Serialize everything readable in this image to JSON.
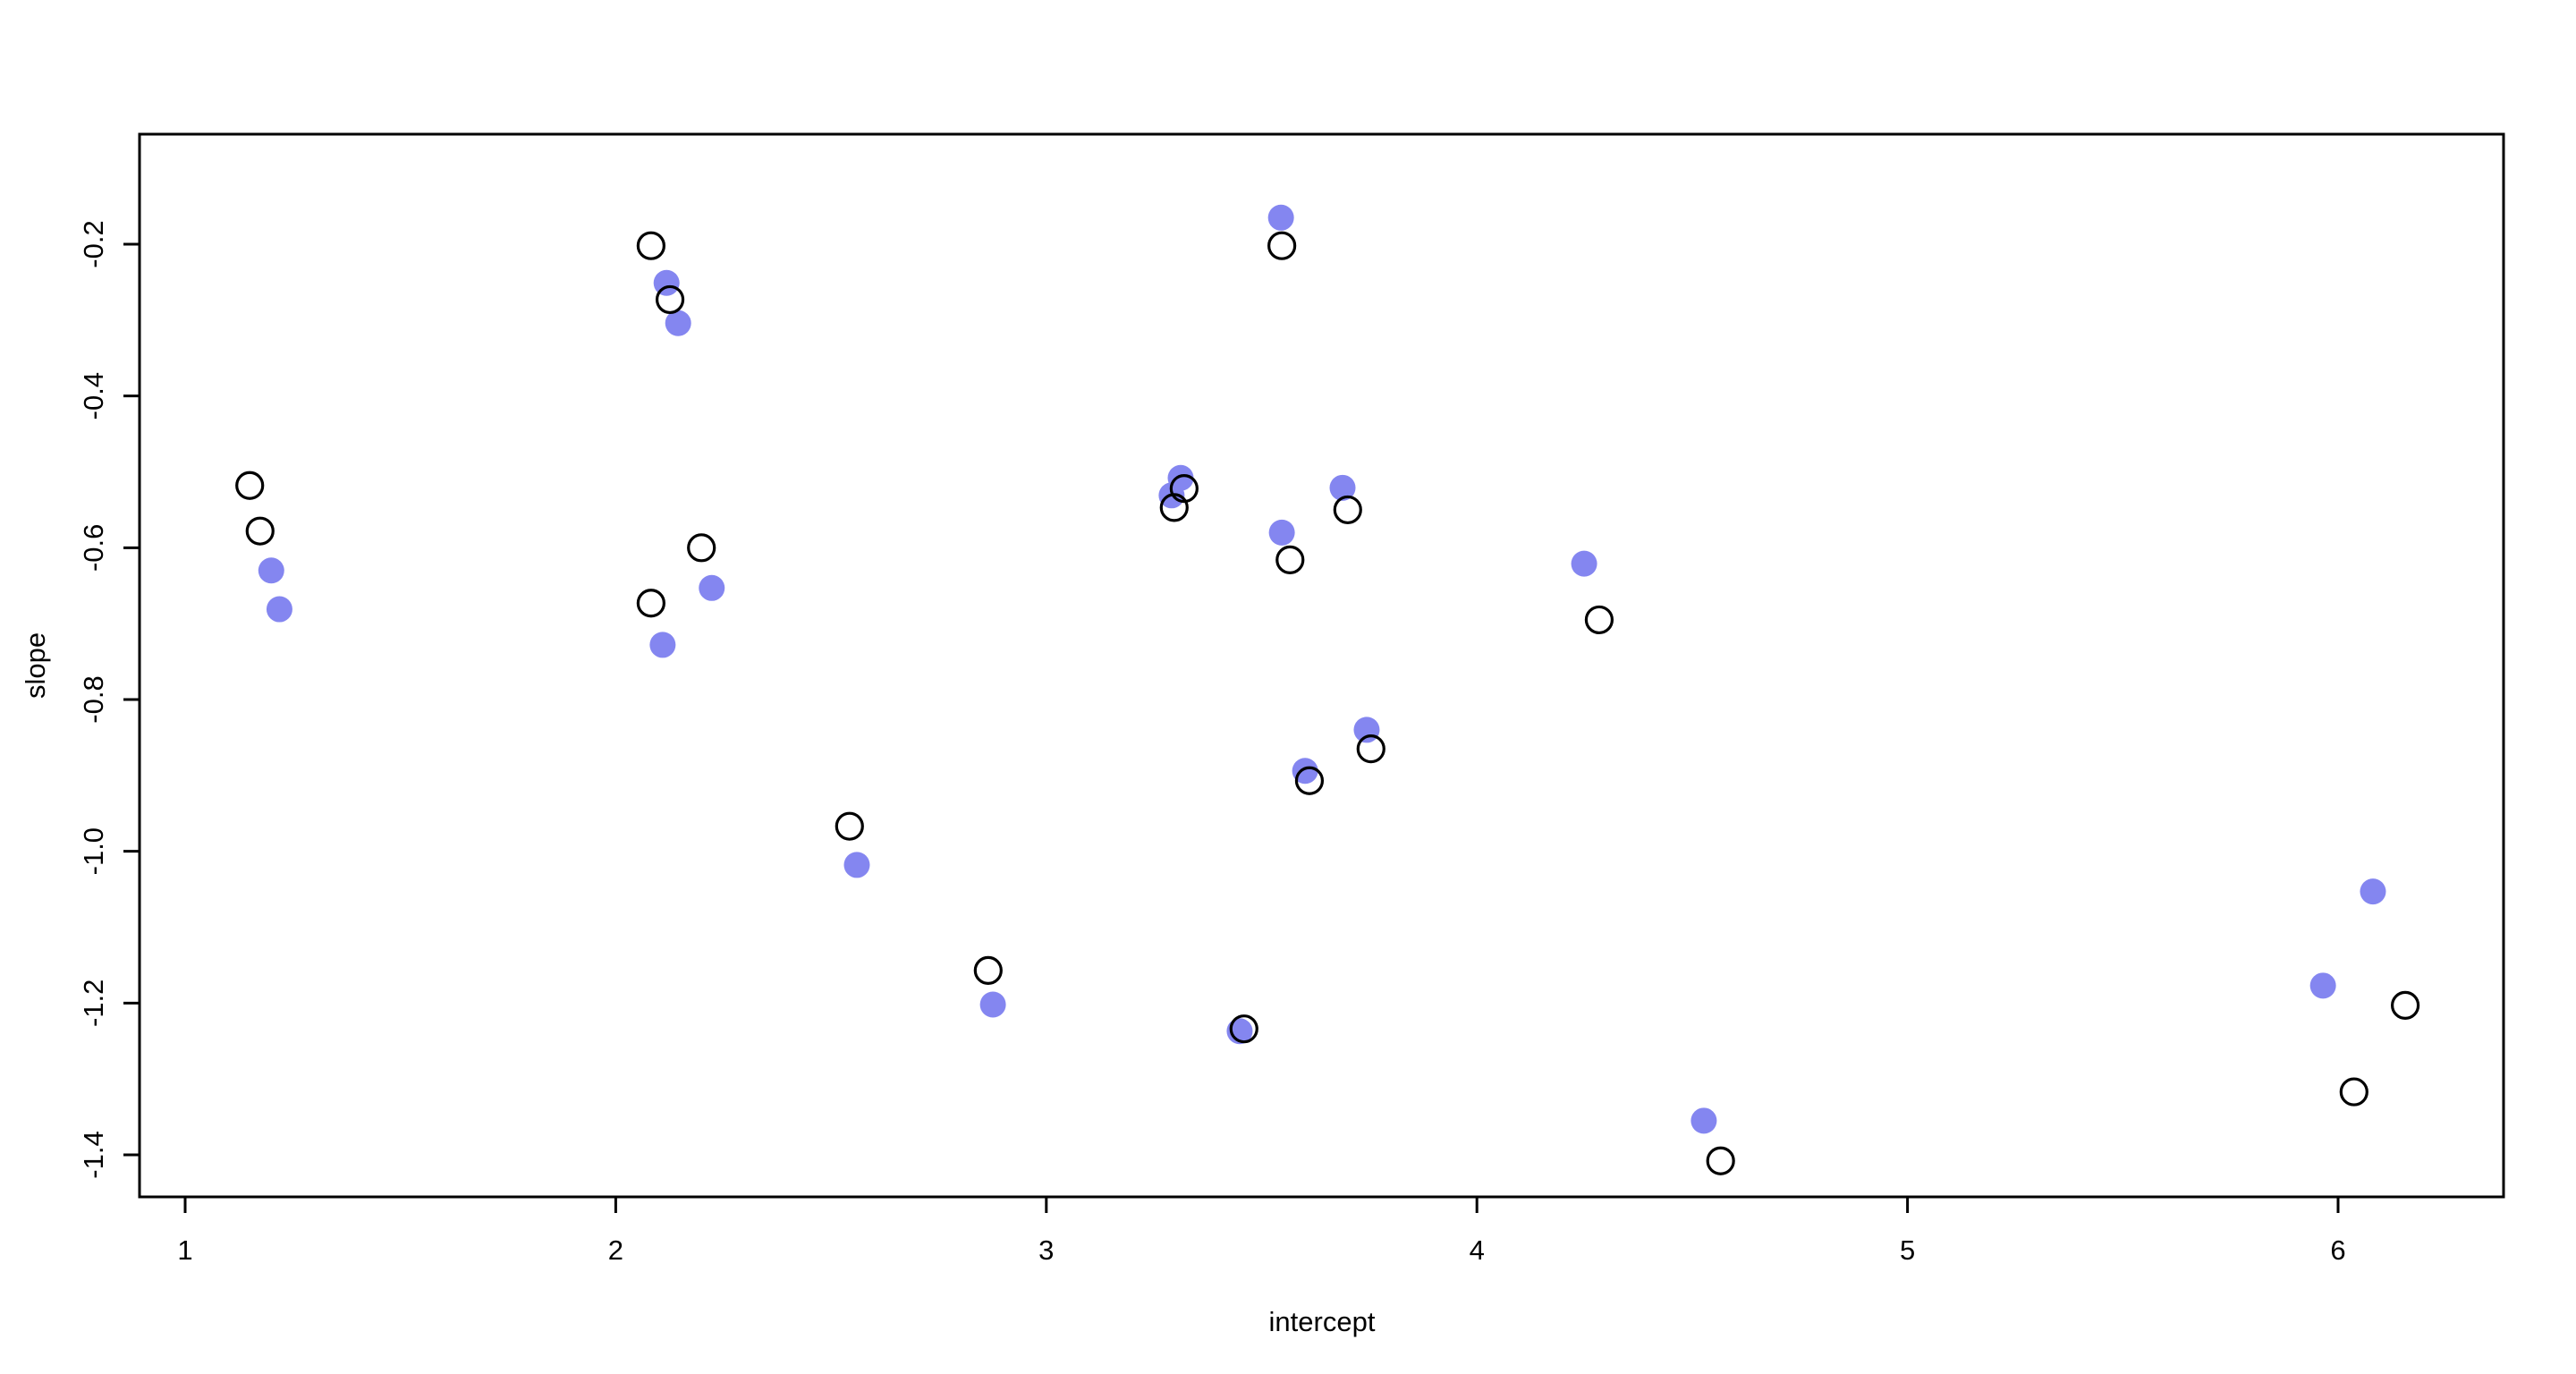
{
  "figure": {
    "background": "#ffffff",
    "frame_color": "#000000"
  },
  "chart_data": {
    "type": "scatter",
    "title": "",
    "xlabel": "intercept",
    "ylabel": "slope",
    "xlim": [
      0.89,
      6.38
    ],
    "ylim": [
      -1.46,
      -0.06
    ],
    "x_ticks": [
      1,
      2,
      3,
      4,
      5,
      6
    ],
    "y_ticks": [
      -0.2,
      -0.4,
      -0.6,
      -0.8,
      -1.0,
      -1.2,
      -1.4
    ],
    "grid": false,
    "legend_position": "none",
    "series": [
      {
        "name": "filled-points",
        "marker": "filled-circle",
        "color": "#8486f0",
        "points": [
          [
            1.2,
            -0.63
          ],
          [
            1.219,
            -0.681
          ],
          [
            2.118,
            -0.251
          ],
          [
            2.145,
            -0.304
          ],
          [
            2.223,
            -0.653
          ],
          [
            2.109,
            -0.728
          ],
          [
            2.56,
            -1.018
          ],
          [
            2.876,
            -1.202
          ],
          [
            3.312,
            -0.508
          ],
          [
            3.291,
            -0.531
          ],
          [
            3.545,
            -0.165
          ],
          [
            3.688,
            -0.521
          ],
          [
            3.547,
            -0.58
          ],
          [
            3.744,
            -0.84
          ],
          [
            3.601,
            -0.894
          ],
          [
            3.449,
            -1.237
          ],
          [
            4.249,
            -0.621
          ],
          [
            4.527,
            -1.355
          ],
          [
            6.081,
            -1.053
          ],
          [
            5.965,
            -1.177
          ]
        ]
      },
      {
        "name": "open-points",
        "marker": "open-circle",
        "color": "#000000",
        "points": [
          [
            1.15,
            -0.518
          ],
          [
            1.174,
            -0.578
          ],
          [
            2.082,
            -0.202
          ],
          [
            2.126,
            -0.273
          ],
          [
            2.199,
            -0.6
          ],
          [
            2.082,
            -0.673
          ],
          [
            2.543,
            -0.967
          ],
          [
            2.865,
            -1.157
          ],
          [
            3.32,
            -0.522
          ],
          [
            3.297,
            -0.547
          ],
          [
            3.547,
            -0.202
          ],
          [
            3.7,
            -0.55
          ],
          [
            3.566,
            -0.616
          ],
          [
            3.754,
            -0.865
          ],
          [
            3.611,
            -0.907
          ],
          [
            3.459,
            -1.234
          ],
          [
            4.284,
            -0.695
          ],
          [
            4.566,
            -1.408
          ],
          [
            6.156,
            -1.203
          ],
          [
            6.037,
            -1.317
          ]
        ]
      }
    ]
  }
}
